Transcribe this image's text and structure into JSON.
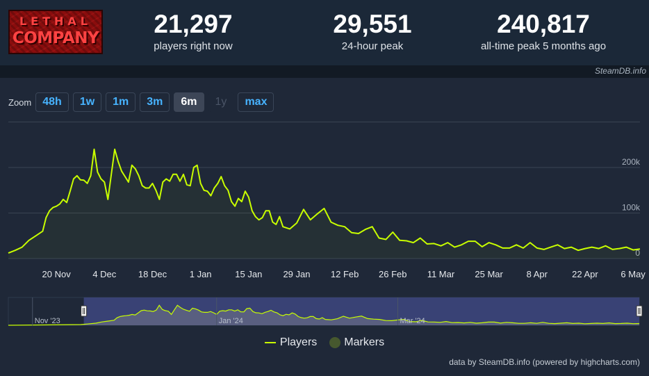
{
  "game": {
    "logo_line1": "LETHAL",
    "logo_line2": "COMPANY"
  },
  "stats": [
    {
      "value": "21,297",
      "label": "players right now"
    },
    {
      "value": "29,551",
      "label": "24-hour peak"
    },
    {
      "value": "240,817",
      "label": "all-time peak 5 months ago"
    }
  ],
  "brand": "SteamDB.info",
  "zoom": {
    "label": "Zoom",
    "buttons": [
      {
        "label": "48h",
        "state": "normal"
      },
      {
        "label": "1w",
        "state": "normal"
      },
      {
        "label": "1m",
        "state": "normal"
      },
      {
        "label": "3m",
        "state": "normal"
      },
      {
        "label": "6m",
        "state": "active"
      },
      {
        "label": "1y",
        "state": "disabled"
      },
      {
        "label": "max",
        "state": "normal"
      }
    ]
  },
  "legend": {
    "players": "Players",
    "markers": "Markers"
  },
  "credit": "data by SteamDB.info (powered by highcharts.com)",
  "colors": {
    "line": "#c9ff00",
    "grid": "#3a4453",
    "navigator_mask": "#3e4680",
    "markers": "#46582e"
  },
  "chart_data": {
    "type": "line",
    "grid": true,
    "legend_position": "bottom-center",
    "y_ticks": [
      {
        "value": 0,
        "label": "0"
      },
      {
        "value": 100000,
        "label": "100k"
      },
      {
        "value": 200000,
        "label": "200k"
      }
    ],
    "ylim": [
      0,
      300000
    ],
    "x_ticks": [
      {
        "x": 14,
        "label": "20 Nov"
      },
      {
        "x": 28,
        "label": "4 Dec"
      },
      {
        "x": 42,
        "label": "18 Dec"
      },
      {
        "x": 56,
        "label": "1 Jan"
      },
      {
        "x": 70,
        "label": "15 Jan"
      },
      {
        "x": 84,
        "label": "29 Jan"
      },
      {
        "x": 98,
        "label": "12 Feb"
      },
      {
        "x": 112,
        "label": "26 Feb"
      },
      {
        "x": 126,
        "label": "11 Mar"
      },
      {
        "x": 140,
        "label": "25 Mar"
      },
      {
        "x": 154,
        "label": "8 Apr"
      },
      {
        "x": 168,
        "label": "22 Apr"
      },
      {
        "x": 182,
        "label": "6 May"
      }
    ],
    "navigator_labels": [
      {
        "x": -17,
        "label": "Nov '23"
      },
      {
        "x": 44,
        "label": "Jan '24"
      },
      {
        "x": 104,
        "label": "Mar '24"
      }
    ],
    "series": [
      {
        "name": "Players",
        "x": [
          0,
          2,
          4,
          6,
          8,
          10,
          11,
          12,
          13,
          14,
          15,
          16,
          17,
          18,
          19,
          20,
          21,
          22,
          23,
          24,
          25,
          26,
          27,
          28,
          29,
          30,
          31,
          32,
          33,
          34,
          35,
          36,
          37,
          38,
          39,
          40,
          41,
          42,
          43,
          44,
          45,
          46,
          47,
          48,
          49,
          50,
          51,
          52,
          53,
          54,
          55,
          56,
          57,
          58,
          59,
          60,
          61,
          62,
          63,
          64,
          65,
          66,
          67,
          68,
          69,
          70,
          71,
          72,
          73,
          74,
          75,
          76,
          77,
          78,
          79,
          80,
          82,
          84,
          86,
          88,
          90,
          92,
          94,
          96,
          98,
          100,
          102,
          104,
          106,
          108,
          110,
          112,
          114,
          116,
          118,
          120,
          122,
          124,
          126,
          128,
          130,
          132,
          134,
          136,
          138,
          140,
          142,
          144,
          146,
          148,
          150,
          152,
          154,
          156,
          158,
          160,
          162,
          164,
          166,
          168,
          170,
          172,
          174,
          176,
          178,
          180,
          182,
          184
        ],
        "values": [
          12000,
          18000,
          25000,
          40000,
          50000,
          60000,
          90000,
          105000,
          112000,
          115000,
          120000,
          130000,
          123000,
          148000,
          175000,
          182000,
          173000,
          172000,
          165000,
          182000,
          240000,
          190000,
          175000,
          168000,
          130000,
          185000,
          240000,
          213000,
          192000,
          180000,
          168000,
          205000,
          197000,
          182000,
          160000,
          155000,
          155000,
          165000,
          150000,
          130000,
          168000,
          175000,
          170000,
          185000,
          185000,
          170000,
          185000,
          162000,
          160000,
          200000,
          205000,
          165000,
          150000,
          148000,
          138000,
          155000,
          165000,
          180000,
          160000,
          150000,
          125000,
          115000,
          132000,
          125000,
          148000,
          135000,
          105000,
          92000,
          85000,
          90000,
          105000,
          105000,
          80000,
          75000,
          92000,
          70000,
          65000,
          78000,
          108000,
          85000,
          98000,
          110000,
          80000,
          73000,
          70000,
          57000,
          55000,
          64000,
          70000,
          45000,
          42000,
          58000,
          40000,
          39000,
          35000,
          45000,
          32000,
          33000,
          28000,
          35000,
          25000,
          30000,
          38000,
          38000,
          26000,
          35000,
          30000,
          23000,
          23000,
          30000,
          23000,
          35000,
          23000,
          20000,
          25000,
          30000,
          22000,
          25000,
          18000,
          22000,
          25000,
          22000,
          28000,
          20000,
          22000,
          25000,
          19000,
          21000
        ]
      }
    ]
  }
}
